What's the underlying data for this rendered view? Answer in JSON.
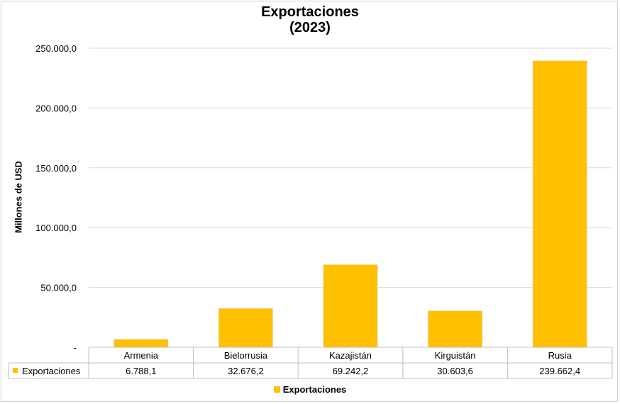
{
  "chart_data": {
    "type": "bar",
    "title_line1": "Exportaciones",
    "title_line2": "(2023)",
    "ylabel": "Millones de USD",
    "xlabel": "",
    "categories": [
      "Armenia",
      "Bielorrusia",
      "Kazajistán",
      "Kirguistán",
      "Rusia"
    ],
    "series": [
      {
        "name": "Exportaciones",
        "values": [
          6788.1,
          32676.2,
          69242.2,
          30603.6,
          239662.4
        ]
      }
    ],
    "value_labels": [
      "6.788,1",
      "32.676,2",
      "69.242,2",
      "30.603,6",
      "239.662,4"
    ],
    "ylim": [
      0,
      250000
    ],
    "yticks": [
      0,
      50000,
      100000,
      150000,
      200000,
      250000
    ],
    "ytick_labels": [
      "-",
      "50.000,0",
      "100.000,0",
      "150.000,0",
      "200.000,0",
      "250.000,0"
    ],
    "grid": true,
    "legend_position": "bottom",
    "data_table": true,
    "bar_color": "#ffc000"
  }
}
